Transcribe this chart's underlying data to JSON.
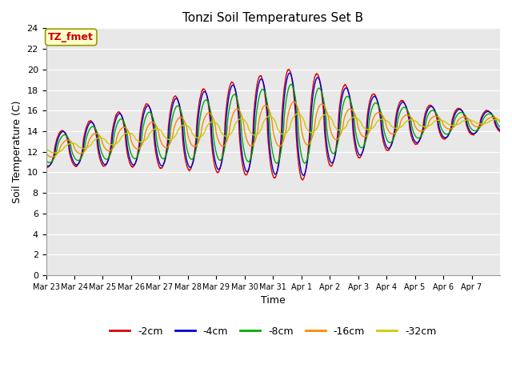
{
  "title": "Tonzi Soil Temperatures Set B",
  "xlabel": "Time",
  "ylabel": "Soil Temperature (C)",
  "ylim": [
    0,
    24
  ],
  "yticks": [
    0,
    2,
    4,
    6,
    8,
    10,
    12,
    14,
    16,
    18,
    20,
    22,
    24
  ],
  "series_labels": [
    "-2cm",
    "-4cm",
    "-8cm",
    "-16cm",
    "-32cm"
  ],
  "series_colors": [
    "#dd0000",
    "#0000cc",
    "#00aa00",
    "#ff8800",
    "#cccc00"
  ],
  "xtick_labels": [
    "Mar 23",
    "Mar 24",
    "Mar 25",
    "Mar 26",
    "Mar 27",
    "Mar 28",
    "Mar 29",
    "Mar 30",
    "Mar 31",
    "Apr 1",
    "Apr 2",
    "Apr 3",
    "Apr 4",
    "Apr 5",
    "Apr 6",
    "Apr 7"
  ],
  "annotation_text": "TZ_fmet",
  "annotation_color": "#cc0000",
  "annotation_bg": "#ffffcc",
  "fig_bg_color": "#ffffff",
  "ax_bg_color": "#e8e8e8",
  "n_days": 16,
  "n_pts_per_day": 96
}
